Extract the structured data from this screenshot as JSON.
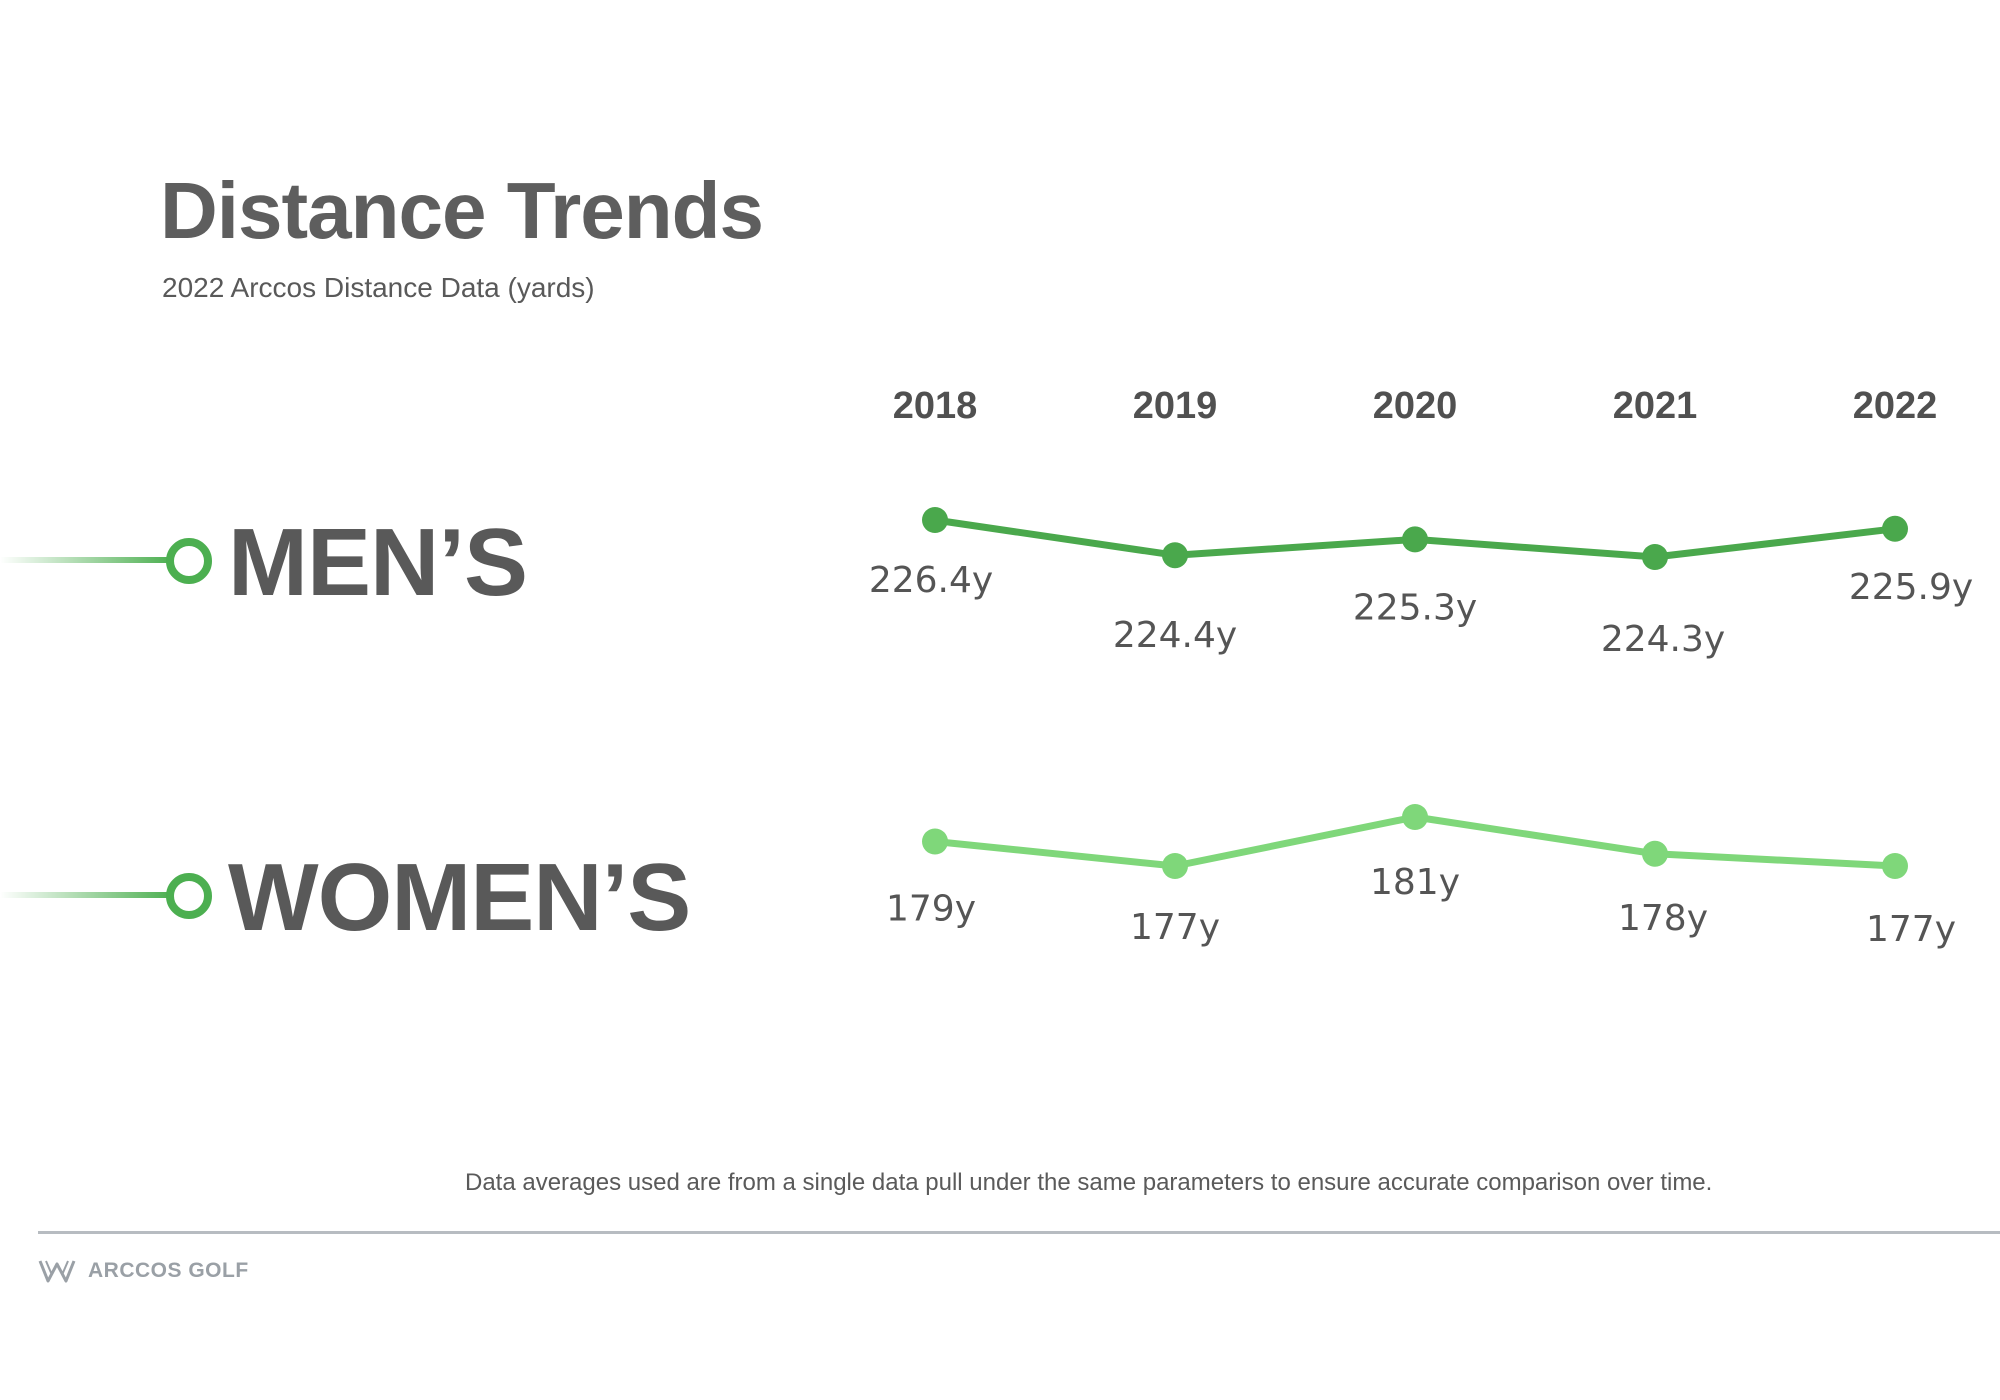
{
  "title": "Distance Trends",
  "subtitle": "2022 Arccos Distance Data (yards)",
  "footnote": "Data averages used are from a single data pull under the same parameters to ensure accurate comparison over time.",
  "brand": "ARCCOS GOLF",
  "colors": {
    "mens": "#4aa84c",
    "womens": "#7fd77a",
    "ring": "#4caf50",
    "text": "#5e5e5e"
  },
  "chart_data": {
    "type": "line",
    "x": [
      "2018",
      "2019",
      "2020",
      "2021",
      "2022"
    ],
    "series": [
      {
        "name": "MEN’S",
        "values": [
          226.4,
          224.4,
          225.3,
          224.3,
          225.9
        ],
        "labels": [
          "226.4y",
          "224.4y",
          "225.3y",
          "224.3y",
          "225.9y"
        ]
      },
      {
        "name": "WOMEN’S",
        "values": [
          179,
          177,
          181,
          178,
          177
        ],
        "labels": [
          "179y",
          "177y",
          "181y",
          "178y",
          "177y"
        ]
      }
    ]
  }
}
